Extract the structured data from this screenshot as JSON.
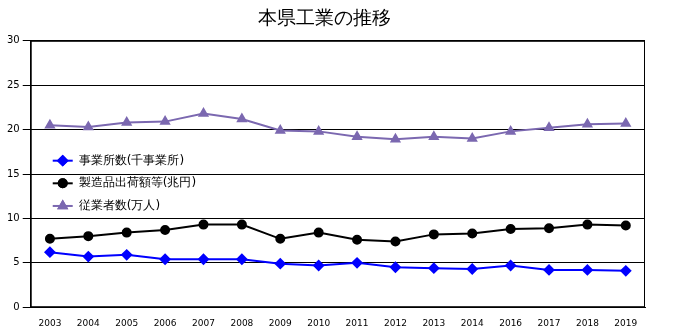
{
  "chart_data": {
    "type": "line",
    "title": "本県工業の推移",
    "categories": [
      "2003",
      "2004",
      "2005",
      "2006",
      "2007",
      "2008",
      "2009",
      "2010",
      "2011",
      "2012",
      "2013",
      "2014",
      "2016",
      "2017",
      "2018",
      "2019"
    ],
    "series": [
      {
        "name": "事業所数(千事業所)",
        "color": "#0000ff",
        "marker": "diamond",
        "values": [
          6.2,
          5.7,
          5.9,
          5.4,
          5.4,
          5.4,
          4.9,
          4.7,
          5.0,
          4.5,
          4.4,
          4.3,
          4.7,
          4.2,
          4.2,
          4.1
        ]
      },
      {
        "name": "製造品出荷額等(兆円)",
        "color": "#000000",
        "marker": "circle",
        "values": [
          7.7,
          8.0,
          8.4,
          8.7,
          9.3,
          9.3,
          7.7,
          8.4,
          7.6,
          7.4,
          8.2,
          8.3,
          8.8,
          8.9,
          9.3,
          9.2
        ]
      },
      {
        "name": "従業者数(万人)",
        "color": "#7b68b0",
        "marker": "triangle",
        "values": [
          20.5,
          20.3,
          20.8,
          20.9,
          21.8,
          21.2,
          19.9,
          19.8,
          19.2,
          18.9,
          19.2,
          19.0,
          19.8,
          20.2,
          20.6,
          20.7
        ]
      }
    ],
    "ylim": [
      0,
      30
    ],
    "yticks": [
      0,
      5,
      10,
      15,
      20,
      25,
      30
    ],
    "grid": true,
    "legend": "left"
  }
}
